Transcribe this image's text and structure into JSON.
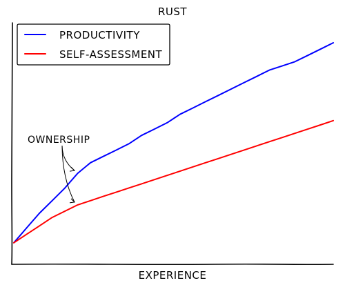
{
  "chart_data": {
    "type": "line",
    "title": "RUST",
    "xlabel": "EXPERIENCE",
    "ylabel": "",
    "xlim": [
      0,
      100
    ],
    "ylim": [
      0,
      100
    ],
    "grid": false,
    "legend_position": "top-left",
    "series": [
      {
        "name": "PRODUCTIVITY",
        "color": "#0000ff",
        "x": [
          0,
          4,
          8,
          12,
          16,
          20,
          24,
          28,
          32,
          36,
          40,
          44,
          48,
          52,
          56,
          60,
          64,
          68,
          72,
          76,
          80,
          84,
          88,
          92,
          96,
          100
        ],
        "y": [
          5,
          12,
          19,
          25,
          31,
          38,
          43,
          46,
          49,
          52,
          56,
          59,
          62,
          66,
          69,
          72,
          75,
          78,
          81,
          84,
          87,
          89,
          91,
          94,
          97,
          100
        ]
      },
      {
        "name": "SELF-ASSESSMENT",
        "color": "#ff0000",
        "x": [
          0,
          4,
          8,
          12,
          16,
          20,
          24,
          28,
          32,
          36,
          40,
          44,
          48,
          52,
          56,
          60,
          64,
          68,
          72,
          76,
          80,
          84,
          88,
          92,
          96,
          100
        ],
        "y": [
          5,
          9,
          13,
          17,
          20,
          23,
          25,
          27,
          29,
          31,
          33,
          35,
          37,
          39,
          41,
          43,
          45,
          47,
          49,
          51,
          53,
          55,
          57,
          59,
          61,
          63
        ]
      }
    ],
    "annotations": [
      {
        "text": "OWNERSHIP",
        "targets": [
          {
            "x": 19,
            "y": 38
          },
          {
            "x": 19,
            "y": 23
          }
        ]
      }
    ]
  }
}
